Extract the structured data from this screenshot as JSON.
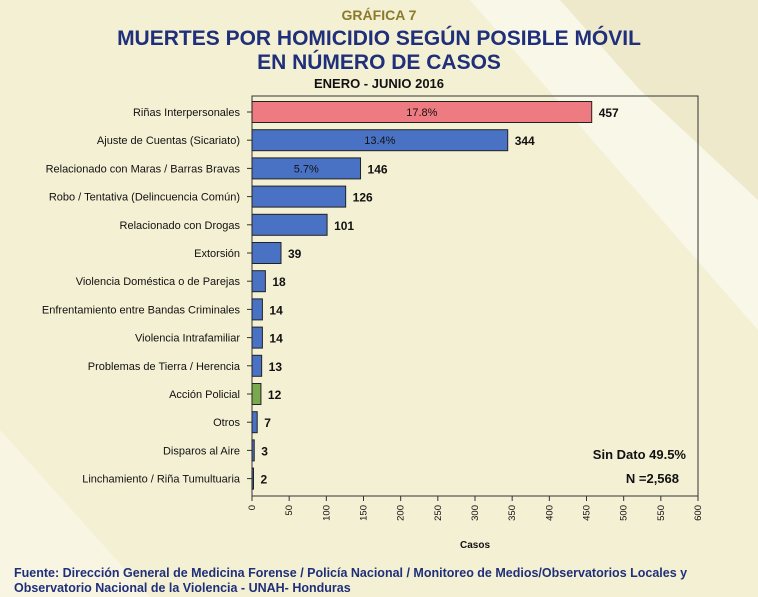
{
  "header": {
    "label": "GRÁFICA 7",
    "title_line1": "MUERTES POR HOMICIDIO SEGÚN POSIBLE MÓVIL",
    "title_line2": "EN NÚMERO DE CASOS",
    "subtitle": "ENERO - JUNIO 2016"
  },
  "chart_data": {
    "type": "bar",
    "orientation": "horizontal",
    "categories": [
      "Riñas Interpersonales",
      "Ajuste de Cuentas (Sicariato)",
      "Relacionado con Maras / Barras Bravas",
      "Robo / Tentativa (Delincuencia Común)",
      "Relacionado con Drogas",
      "Extorsión",
      "Violencia Doméstica o de Parejas",
      "Enfrentamiento entre Bandas Criminales",
      "Violencia Intrafamiliar",
      "Problemas de Tierra / Herencia",
      "Acción Policial",
      "Otros",
      "Disparos al Aire",
      "Linchamiento / Riña Tumultuaria"
    ],
    "values": [
      457,
      344,
      146,
      126,
      101,
      39,
      18,
      14,
      14,
      13,
      12,
      7,
      3,
      2
    ],
    "percent_labels": [
      "17.8%",
      "13.4%",
      "5.7%",
      "",
      "",
      "",
      "",
      "",
      "",
      "",
      "",
      "",
      "",
      ""
    ],
    "bar_colors": [
      "#ee7b81",
      "#4a72c4",
      "#4a72c4",
      "#4a72c4",
      "#4a72c4",
      "#4a72c4",
      "#4a72c4",
      "#4a72c4",
      "#4a72c4",
      "#4a72c4",
      "#7aa84e",
      "#4a72c4",
      "#4a72c4",
      "#4a72c4"
    ],
    "xlabel": "Casos",
    "xlim": [
      0,
      600
    ],
    "xticks": [
      0,
      50,
      100,
      150,
      200,
      250,
      300,
      350,
      400,
      450,
      500,
      550,
      600
    ],
    "annotations": [
      "Sin Dato 49.5%",
      "N =2,568"
    ],
    "grid": false
  },
  "footer": {
    "line1": "Fuente: Dirección General de Medicina Forense / Policía Nacional / Monitoreo de Medios/Observatorios Locales y",
    "line2": "Observatorio Nacional de la Violencia - UNAH- Honduras"
  }
}
